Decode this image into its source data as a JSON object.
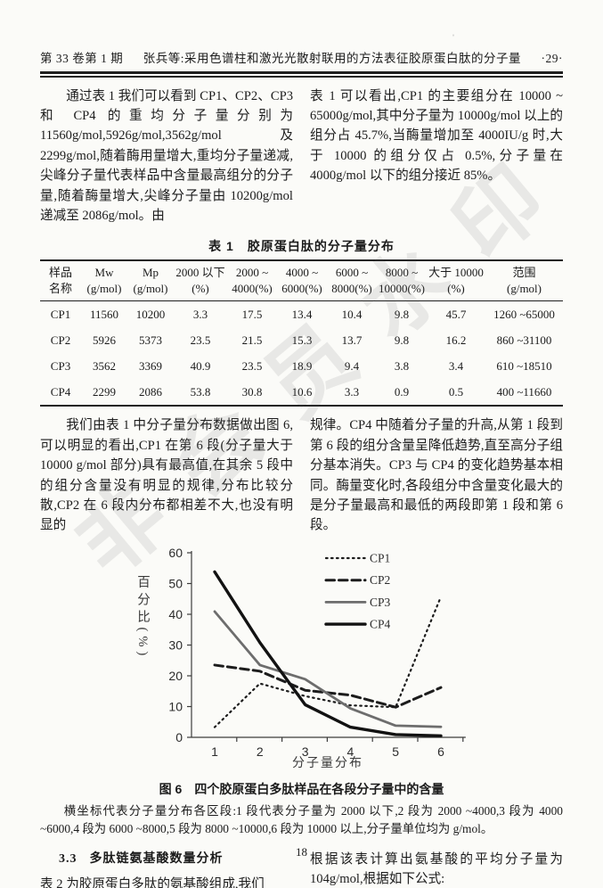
{
  "header": {
    "left": "第 33 卷第 1 期",
    "center": "张兵等:采用色谱柱和激光光散射联用的方法表征胶原蛋白肽的分子量",
    "right": "·29·"
  },
  "watermark": {
    "text": "非会员水印"
  },
  "paragraphs": {
    "left_1": "通过表 1 我们可以看到 CP1、CP2、CP3 和 CP4 的重均分子量分别为 11560g/mol,5926g/mol,3562g/mol 及 2299g/mol,随着酶用量增大,重均分子量递减,尖峰分子量代表样品中含量最高组分的分子量,随着酶量增大,尖峰分子量由 10200g/mol 递减至 2086g/mol。由",
    "right_1": "表 1 可以看出,CP1 的主要组分在 10000 ~ 65000g/mol,其中分子量为 10000g/mol 以上的组分占 45.7%,当酶量增加至 4000IU/g 时,大于 10000 的组分仅占 0.5%,分子量在 4000g/mol 以下的组分接近 85%。",
    "left_2": "我们由表 1 中分子量分布数据做出图 6,可以明显的看出,CP1 在第 6 段(分子量大于 10000 g/mol 部分)具有最高值,在其余 5 段中的组分含量没有明显的规律,分布比较分散,CP2 在 6 段内分布都相差不大,也没有明显的",
    "right_2": "规律。CP4 中随着分子量的升高,从第 1 段到第 6 段的组分含量呈降低趋势,直至高分子组分基本消失。CP3 与 CP4 的变化趋势基本相同。酶量变化时,各段组分中含量变化最大的是分子量最高和最低的两段即第 1 段和第 6 段。",
    "left_3": "表 2 为胶原蛋白多肽的氨基酸组成,我们",
    "right_3": "根据该表计算出氨基酸的平均分子量为 104g/mol,根据如下公式:"
  },
  "section": {
    "number": "3.3",
    "title": "多肽链氨基酸数量分析"
  },
  "table": {
    "title": "表 1　胶原蛋白肽的分子量分布",
    "col_headers": [
      {
        "l1": "样品",
        "l2": "名称"
      },
      {
        "l1": "Mw",
        "l2": "(g/mol)"
      },
      {
        "l1": "Mp",
        "l2": "(g/mol)"
      },
      {
        "l1": "2000 以下",
        "l2": "(%)"
      },
      {
        "l1": "2000 ~",
        "l2": "4000(%)"
      },
      {
        "l1": "4000 ~",
        "l2": "6000(%)"
      },
      {
        "l1": "6000 ~",
        "l2": "8000(%)"
      },
      {
        "l1": "8000 ~",
        "l2": "10000(%)"
      },
      {
        "l1": "大于 10000",
        "l2": "(%)"
      },
      {
        "l1": "范围",
        "l2": "(g/mol)"
      }
    ],
    "rows": [
      [
        "CP1",
        "11560",
        "10200",
        "3.3",
        "17.5",
        "13.4",
        "10.4",
        "9.8",
        "45.7",
        "1260 ~65000"
      ],
      [
        "CP2",
        "5926",
        "5373",
        "23.5",
        "21.5",
        "15.3",
        "13.7",
        "9.8",
        "16.2",
        "860 ~31100"
      ],
      [
        "CP3",
        "3562",
        "3369",
        "40.9",
        "23.5",
        "18.9",
        "9.4",
        "3.8",
        "3.4",
        "610 ~18510"
      ],
      [
        "CP4",
        "2299",
        "2086",
        "53.8",
        "30.8",
        "10.6",
        "3.3",
        "0.9",
        "0.5",
        "400 ~11660"
      ]
    ]
  },
  "chart_data": {
    "type": "line",
    "x": [
      1,
      2,
      3,
      4,
      5,
      6
    ],
    "series": [
      {
        "name": "CP1",
        "style": "dotted",
        "color": "#1c1c1c",
        "values": [
          3.3,
          17.5,
          13.4,
          10.4,
          9.8,
          45.7
        ]
      },
      {
        "name": "CP2",
        "style": "dashed",
        "color": "#1c1c1c",
        "values": [
          23.5,
          21.5,
          15.3,
          13.7,
          9.8,
          16.2
        ]
      },
      {
        "name": "CP3",
        "style": "solid",
        "color": "#6d6d6d",
        "values": [
          40.9,
          23.5,
          18.9,
          9.4,
          3.8,
          3.4
        ]
      },
      {
        "name": "CP4",
        "style": "solid",
        "color": "#121212",
        "values": [
          53.8,
          30.8,
          10.6,
          3.3,
          0.9,
          0.5
        ]
      }
    ],
    "title": "",
    "xlabel": "分子量分布",
    "ylabel": "百分比(%)",
    "ylim": [
      0,
      60
    ],
    "yticks": [
      0,
      10,
      20,
      30,
      40,
      50,
      60
    ],
    "legend_position": "top-right",
    "grid": false
  },
  "figure": {
    "caption": "图 6　四个胶原蛋白多肽样品在各段分子量中的含量",
    "note": "横坐标代表分子量分布各区段:1 段代表分子量为 2000 以下,2 段为 2000 ~4000,3 段为 4000 ~6000,4 段为 6000 ~8000,5 段为 8000 ~10000,6 段为 10000 以上,分子量单位均为 g/mol。"
  },
  "footer": {
    "page_number": "18"
  }
}
